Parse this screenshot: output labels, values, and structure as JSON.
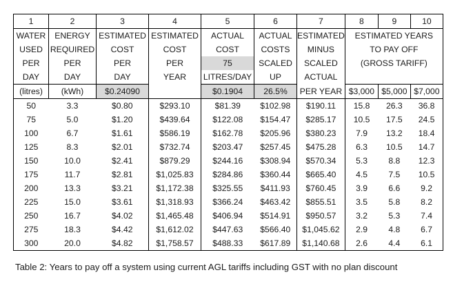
{
  "table": {
    "column_numbers": [
      "1",
      "2",
      "3",
      "4",
      "5",
      "6",
      "7",
      "8",
      "9",
      "10"
    ],
    "header_lines": {
      "c1": [
        "WATER",
        "USED",
        "PER",
        "DAY"
      ],
      "c2": [
        "ENERGY",
        "REQUIRED",
        "PER",
        "DAY"
      ],
      "c3": [
        "ESTIMATED",
        "COST",
        "PER",
        "DAY"
      ],
      "c4": [
        "ESTIMATED",
        "COST",
        "PER",
        "YEAR"
      ],
      "c5": [
        "ACTUAL",
        "COST",
        "75",
        "LITRES/DAY"
      ],
      "c6": [
        "ACTUAL",
        "COSTS",
        "SCALED",
        "UP"
      ],
      "c7": [
        "ESTIMATED",
        "MINUS",
        "SCALED",
        "ACTUAL",
        "PER YEAR"
      ],
      "c8_10": [
        "ESTIMATED YEARS",
        "TO PAY OFF",
        "(GROSS TARIFF)"
      ]
    },
    "units": {
      "c1": "(litres)",
      "c2": "(kWh)",
      "c3": "$0.24090",
      "c5": "$0.1904",
      "c6": "26.5%",
      "c8": "$3,000",
      "c9": "$5,000",
      "c10": "$7,000"
    },
    "rows": [
      [
        "50",
        "3.3",
        "$0.80",
        "$293.10",
        "$81.39",
        "$102.98",
        "$190.11",
        "15.8",
        "26.3",
        "36.8"
      ],
      [
        "75",
        "5.0",
        "$1.20",
        "$439.64",
        "$122.08",
        "$154.47",
        "$285.17",
        "10.5",
        "17.5",
        "24.5"
      ],
      [
        "100",
        "6.7",
        "$1.61",
        "$586.19",
        "$162.78",
        "$205.96",
        "$380.23",
        "7.9",
        "13.2",
        "18.4"
      ],
      [
        "125",
        "8.3",
        "$2.01",
        "$732.74",
        "$203.47",
        "$257.45",
        "$475.28",
        "6.3",
        "10.5",
        "14.7"
      ],
      [
        "150",
        "10.0",
        "$2.41",
        "$879.29",
        "$244.16",
        "$308.94",
        "$570.34",
        "5.3",
        "8.8",
        "12.3"
      ],
      [
        "175",
        "11.7",
        "$2.81",
        "$1,025.83",
        "$284.86",
        "$360.44",
        "$665.40",
        "4.5",
        "7.5",
        "10.5"
      ],
      [
        "200",
        "13.3",
        "$3.21",
        "$1,172.38",
        "$325.55",
        "$411.93",
        "$760.45",
        "3.9",
        "6.6",
        "9.2"
      ],
      [
        "225",
        "15.0",
        "$3.61",
        "$1,318.93",
        "$366.24",
        "$463.42",
        "$855.51",
        "3.5",
        "5.8",
        "8.2"
      ],
      [
        "250",
        "16.7",
        "$4.02",
        "$1,465.48",
        "$406.94",
        "$514.91",
        "$950.57",
        "3.2",
        "5.3",
        "7.4"
      ],
      [
        "275",
        "18.3",
        "$4.42",
        "$1,612.02",
        "$447.63",
        "$566.40",
        "$1,045.62",
        "2.9",
        "4.8",
        "6.7"
      ],
      [
        "300",
        "20.0",
        "$4.82",
        "$1,758.57",
        "$488.33",
        "$617.89",
        "$1,140.68",
        "2.6",
        "4.4",
        "6.1"
      ]
    ]
  },
  "caption": "Table 2: Years to pay off a system using current AGL tariffs including GST with no plan discount"
}
